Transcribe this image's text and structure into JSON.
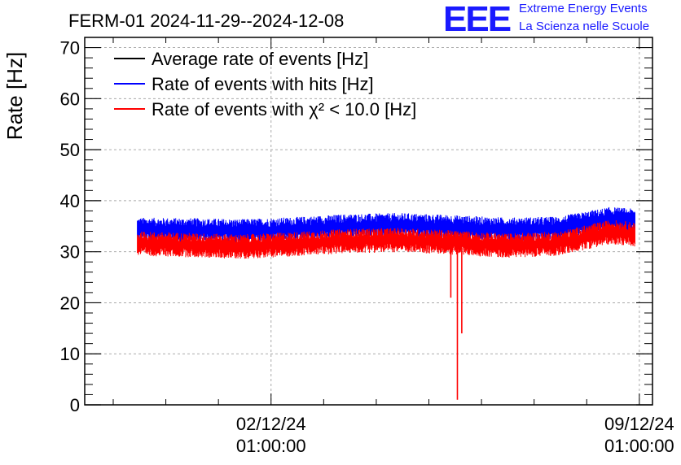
{
  "title": "FERM-01 2024-11-29--2024-12-08",
  "logo": {
    "mark": "EEE",
    "line1": "Extreme Energy Events",
    "line2": "La Scienza nelle Scuole",
    "color": "#1a1aff"
  },
  "chart_data": {
    "type": "line",
    "title": "FERM-01 2024-11-29--2024-12-08",
    "ylabel": "Rate [Hz]",
    "xlabel": "",
    "ylim": [
      0,
      72
    ],
    "yticks": [
      0,
      10,
      20,
      30,
      40,
      50,
      60,
      70
    ],
    "xlim": [
      "2024-11-28 12:00",
      "2024-12-09 07:00"
    ],
    "xticks": [
      {
        "date": "2024-12-02 01:00",
        "label1": "02/12/24",
        "label2": "01:00:00"
      },
      {
        "date": "2024-12-09 01:00",
        "label1": "09/12/24",
        "label2": "01:00:00"
      }
    ],
    "grid": true,
    "legend_position": "top-left",
    "legend": [
      {
        "label": "Average rate of events [Hz]",
        "color": "#000000"
      },
      {
        "label": "Rate of events with hits [Hz]",
        "color": "#0000ff"
      },
      {
        "label": "Rate of events with χ² < 10.0 [Hz]",
        "color": "#ff0000"
      }
    ],
    "series": [
      {
        "name": "Rate of events with hits [Hz]",
        "color": "#0000ff",
        "x": [
          "2024-11-29 12:00",
          "2024-11-30 12:00",
          "2024-12-01 12:00",
          "2024-12-02 12:00",
          "2024-12-03 12:00",
          "2024-12-04 12:00",
          "2024-12-05 12:00",
          "2024-12-06 12:00",
          "2024-12-07 12:00",
          "2024-12-08 12:00",
          "2024-12-08 23:00"
        ],
        "y": [
          34.3,
          34.2,
          34.0,
          34.4,
          35.0,
          35.2,
          34.8,
          34.3,
          34.5,
          36.4,
          36.0
        ]
      },
      {
        "name": "Rate of events with χ² < 10.0 [Hz]",
        "color": "#ff0000",
        "x": [
          "2024-11-29 12:00",
          "2024-11-30 12:00",
          "2024-12-01 12:00",
          "2024-12-02 12:00",
          "2024-12-03 12:00",
          "2024-12-04 12:00",
          "2024-12-05 12:00",
          "2024-12-06 12:00",
          "2024-12-07 12:00",
          "2024-12-08 12:00",
          "2024-12-08 23:00"
        ],
        "y": [
          31.6,
          31.3,
          31.0,
          31.5,
          32.1,
          32.3,
          31.8,
          31.2,
          31.6,
          33.9,
          33.4
        ],
        "dips": [
          {
            "date": "2024-12-05 11:00",
            "value": 21
          },
          {
            "date": "2024-12-05 14:00",
            "value": 1
          },
          {
            "date": "2024-12-05 16:00",
            "value": 14
          }
        ]
      }
    ]
  }
}
